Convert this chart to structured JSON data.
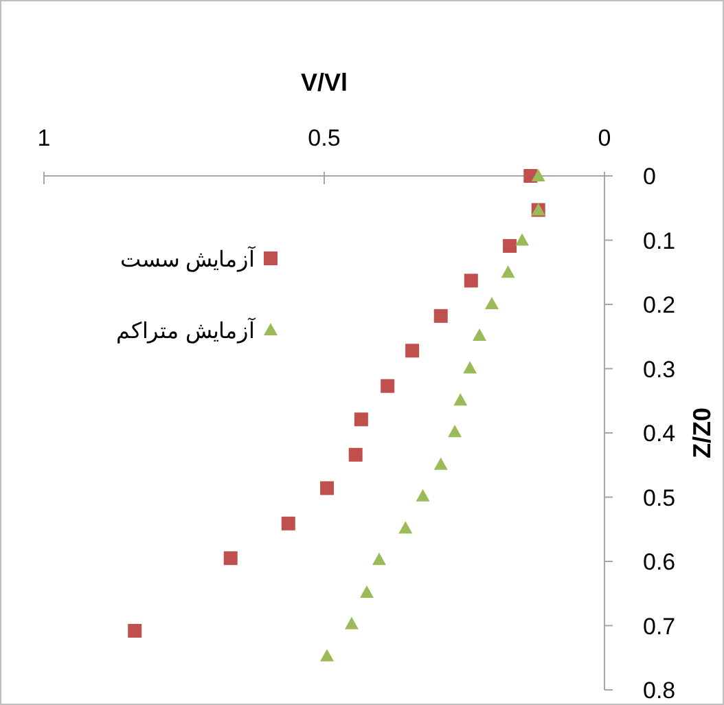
{
  "chart_data": {
    "type": "scatter",
    "xlabel": "V/Vl",
    "ylabel": "Z/Z0",
    "xlim": [
      1,
      0
    ],
    "xticks": [
      1,
      0.5,
      0
    ],
    "ylim": [
      0.8,
      0
    ],
    "yticks": [
      0,
      0.1,
      0.2,
      0.3,
      0.4,
      0.5,
      0.6,
      0.7,
      0.8
    ],
    "legend": "left",
    "grid": false,
    "series": [
      {
        "name": "آزمایش سست",
        "color": "#c0504d",
        "marker": "square",
        "x": [
          0.132,
          0.118,
          0.169,
          0.238,
          0.292,
          0.343,
          0.387,
          0.434,
          0.444,
          0.495,
          0.564,
          0.667,
          0.838
        ],
        "values": [
          0,
          0.053,
          0.109,
          0.163,
          0.218,
          0.272,
          0.327,
          0.379,
          0.434,
          0.486,
          0.541,
          0.595,
          0.708
        ]
      },
      {
        "name": "آزمایش متراکم",
        "color": "#9bbb59",
        "marker": "triangle",
        "x": [
          0.118,
          0.118,
          0.147,
          0.172,
          0.201,
          0.223,
          0.24,
          0.257,
          0.267,
          0.292,
          0.324,
          0.355,
          0.402,
          0.424,
          0.451,
          0.495
        ],
        "values": [
          0,
          0.053,
          0.1,
          0.15,
          0.199,
          0.248,
          0.299,
          0.349,
          0.398,
          0.449,
          0.498,
          0.548,
          0.597,
          0.648,
          0.697,
          0.747
        ]
      }
    ]
  }
}
